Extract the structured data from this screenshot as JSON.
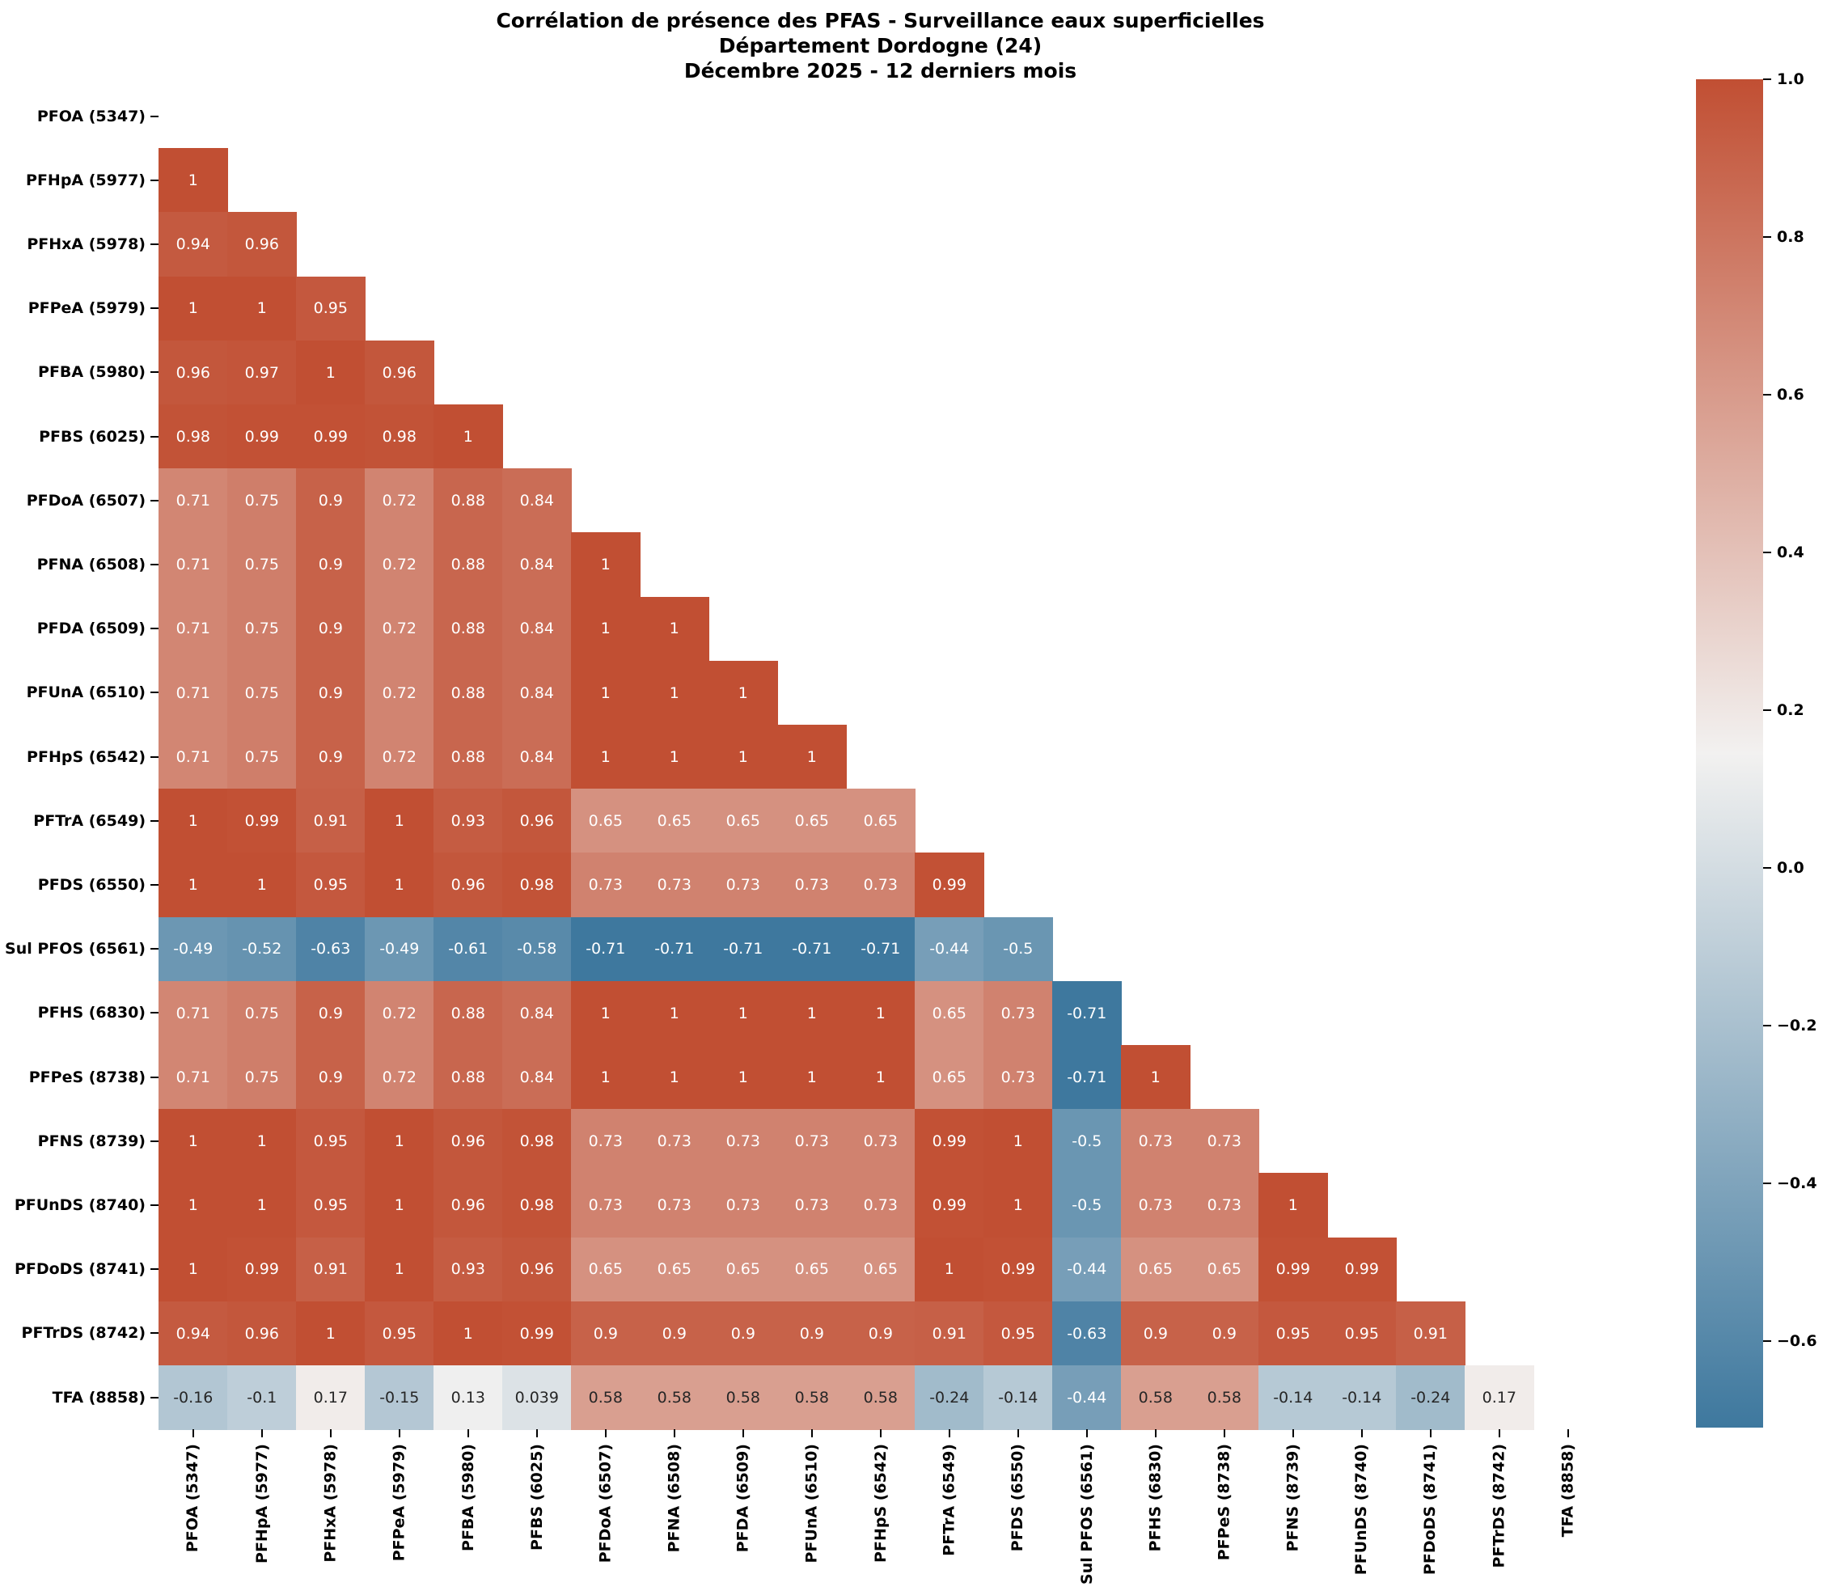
{
  "title": {
    "line1": "Corrélation de présence des PFAS - Surveillance eaux superficielles",
    "line2": "Département Dordogne (24)",
    "line3": "Décembre 2025 - 12 derniers mois"
  },
  "chart_data": {
    "type": "heatmap",
    "title": "Corrélation de présence des PFAS - Surveillance eaux superficielles — Département Dordogne (24) — Décembre 2025 - 12 derniers mois",
    "categories": [
      "PFOA (5347)",
      "PFHpA (5977)",
      "PFHxA (5978)",
      "PFPeA (5979)",
      "PFBA (5980)",
      "PFBS (6025)",
      "PFDoA (6507)",
      "PFNA (6508)",
      "PFDA (6509)",
      "PFUnA (6510)",
      "PFHpS (6542)",
      "PFTrA (6549)",
      "PFDS (6550)",
      "Sul PFOS (6561)",
      "PFHS (6830)",
      "PFPeS (8738)",
      "PFNS (8739)",
      "PFUnDS (8740)",
      "PFDoDS (8741)",
      "PFTrDS (8742)",
      "TFA (8858)"
    ],
    "mask": "upper_triangle_and_diagonal",
    "cells": [
      [],
      [
        "1"
      ],
      [
        "0.94",
        "0.96"
      ],
      [
        "1",
        "1",
        "0.95"
      ],
      [
        "0.96",
        "0.97",
        "1",
        "0.96"
      ],
      [
        "0.98",
        "0.99",
        "0.99",
        "0.98",
        "1"
      ],
      [
        "0.71",
        "0.75",
        "0.9",
        "0.72",
        "0.88",
        "0.84"
      ],
      [
        "0.71",
        "0.75",
        "0.9",
        "0.72",
        "0.88",
        "0.84",
        "1"
      ],
      [
        "0.71",
        "0.75",
        "0.9",
        "0.72",
        "0.88",
        "0.84",
        "1",
        "1"
      ],
      [
        "0.71",
        "0.75",
        "0.9",
        "0.72",
        "0.88",
        "0.84",
        "1",
        "1",
        "1"
      ],
      [
        "0.71",
        "0.75",
        "0.9",
        "0.72",
        "0.88",
        "0.84",
        "1",
        "1",
        "1",
        "1"
      ],
      [
        "1",
        "0.99",
        "0.91",
        "1",
        "0.93",
        "0.96",
        "0.65",
        "0.65",
        "0.65",
        "0.65",
        "0.65"
      ],
      [
        "1",
        "1",
        "0.95",
        "1",
        "0.96",
        "0.98",
        "0.73",
        "0.73",
        "0.73",
        "0.73",
        "0.73",
        "0.99"
      ],
      [
        "-0.49",
        "-0.52",
        "-0.63",
        "-0.49",
        "-0.61",
        "-0.58",
        "-0.71",
        "-0.71",
        "-0.71",
        "-0.71",
        "-0.71",
        "-0.44",
        "-0.5"
      ],
      [
        "0.71",
        "0.75",
        "0.9",
        "0.72",
        "0.88",
        "0.84",
        "1",
        "1",
        "1",
        "1",
        "1",
        "0.65",
        "0.73",
        "-0.71"
      ],
      [
        "0.71",
        "0.75",
        "0.9",
        "0.72",
        "0.88",
        "0.84",
        "1",
        "1",
        "1",
        "1",
        "1",
        "0.65",
        "0.73",
        "-0.71",
        "1"
      ],
      [
        "1",
        "1",
        "0.95",
        "1",
        "0.96",
        "0.98",
        "0.73",
        "0.73",
        "0.73",
        "0.73",
        "0.73",
        "0.99",
        "1",
        "-0.5",
        "0.73",
        "0.73"
      ],
      [
        "1",
        "1",
        "0.95",
        "1",
        "0.96",
        "0.98",
        "0.73",
        "0.73",
        "0.73",
        "0.73",
        "0.73",
        "0.99",
        "1",
        "-0.5",
        "0.73",
        "0.73",
        "1"
      ],
      [
        "1",
        "0.99",
        "0.91",
        "1",
        "0.93",
        "0.96",
        "0.65",
        "0.65",
        "0.65",
        "0.65",
        "0.65",
        "1",
        "0.99",
        "-0.44",
        "0.65",
        "0.65",
        "0.99",
        "0.99"
      ],
      [
        "0.94",
        "0.96",
        "1",
        "0.95",
        "1",
        "0.99",
        "0.9",
        "0.9",
        "0.9",
        "0.9",
        "0.9",
        "0.91",
        "0.95",
        "-0.63",
        "0.9",
        "0.9",
        "0.95",
        "0.95",
        "0.91"
      ],
      [
        "-0.16",
        "-0.1",
        "0.17",
        "-0.15",
        "0.13",
        "0.039",
        "0.58",
        "0.58",
        "0.58",
        "0.58",
        "0.58",
        "-0.24",
        "-0.14",
        "-0.44",
        "0.58",
        "0.58",
        "-0.14",
        "-0.14",
        "-0.24",
        "0.17"
      ]
    ],
    "colorbar": {
      "vmin": -0.71,
      "vmax": 1.0,
      "tick_values": [
        1.0,
        0.8,
        0.6,
        0.4,
        0.2,
        0.0,
        -0.2,
        -0.4,
        -0.6
      ],
      "tick_labels": [
        "1.0",
        "0.8",
        "0.6",
        "0.4",
        "0.2",
        "0.0",
        "−0.2",
        "−0.4",
        "−0.6"
      ]
    },
    "colors": {
      "max_red": "#c14f33",
      "mid_white": "#f2f1f0",
      "min_blue": "#3e789e",
      "annot_dark": "#262626",
      "annot_light": "#ffffff"
    },
    "legend_position": "right-colorbar",
    "grid": false
  },
  "x_axis": {
    "labels": [
      "PFOA (5347)",
      "PFHpA (5977)",
      "PFHxA (5978)",
      "PFPeA (5979)",
      "PFBA (5980)",
      "PFBS (6025)",
      "PFDoA (6507)",
      "PFNA (6508)",
      "PFDA (6509)",
      "PFUnA (6510)",
      "PFHpS (6542)",
      "PFTrA (6549)",
      "PFDS (6550)",
      "Sul PFOS (6561)",
      "PFHS (6830)",
      "PFPeS (8738)",
      "PFNS (8739)",
      "PFUnDS (8740)",
      "PFDoDS (8741)",
      "PFTrDS (8742)",
      "TFA (8858)"
    ]
  },
  "y_axis": {
    "labels": [
      "PFOA (5347)",
      "PFHpA (5977)",
      "PFHxA (5978)",
      "PFPeA (5979)",
      "PFBA (5980)",
      "PFBS (6025)",
      "PFDoA (6507)",
      "PFNA (6508)",
      "PFDA (6509)",
      "PFUnA (6510)",
      "PFHpS (6542)",
      "PFTrA (6549)",
      "PFDS (6550)",
      "Sul PFOS (6561)",
      "PFHS (6830)",
      "PFPeS (8738)",
      "PFNS (8739)",
      "PFUnDS (8740)",
      "PFDoDS (8741)",
      "PFTrDS (8742)",
      "TFA (8858)"
    ]
  }
}
